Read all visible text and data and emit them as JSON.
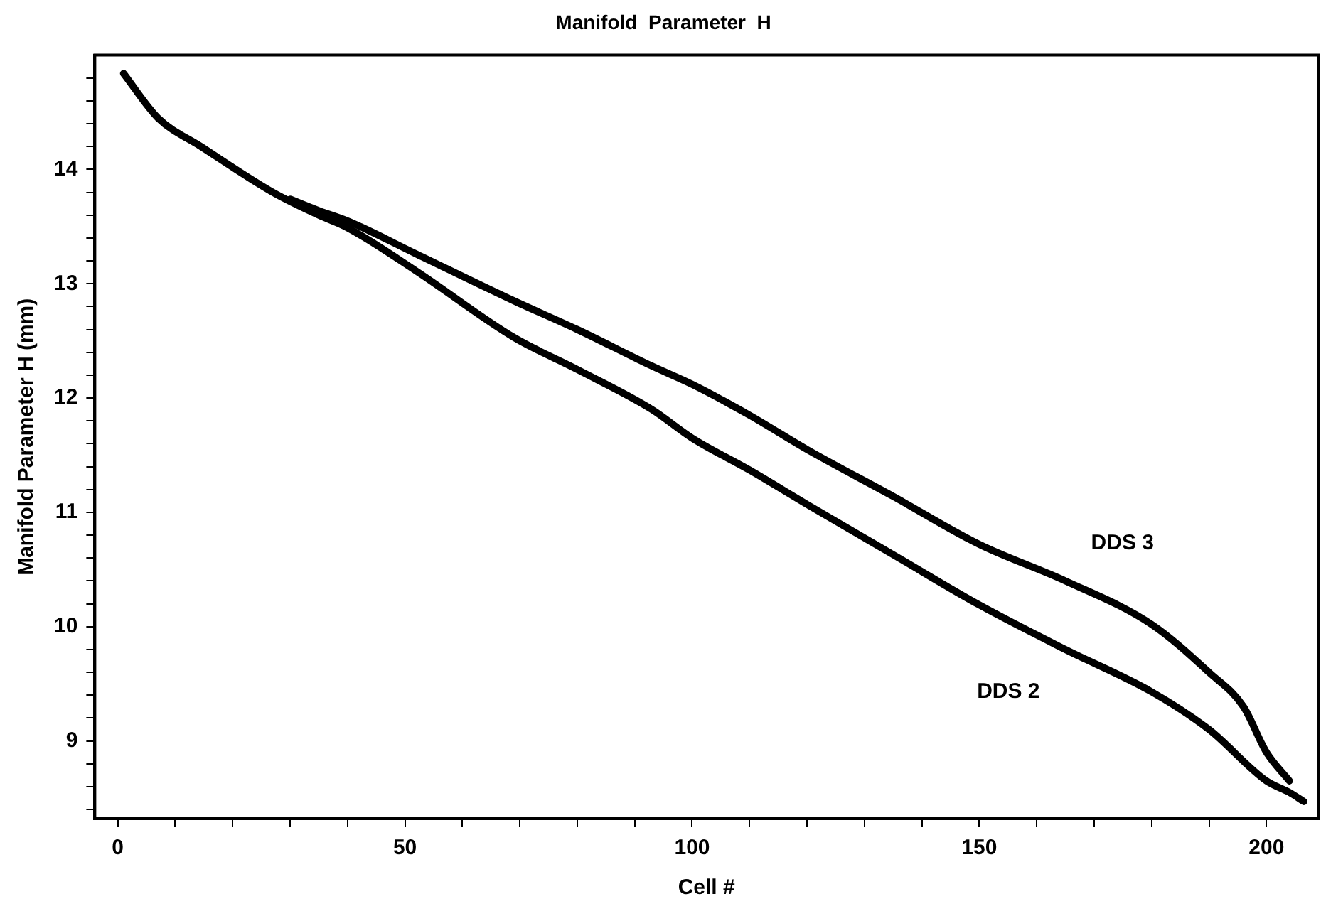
{
  "chart_data": {
    "type": "line",
    "title": "Manifold  Parameter  H",
    "xlabel": "Cell #",
    "ylabel": "Manifold Parameter H (mm)",
    "xlim": [
      -4,
      209
    ],
    "ylim": [
      8.32,
      15
    ],
    "xticks": [
      0,
      {
        "value": 10,
        "label": null
      },
      {
        "value": 20,
        "label": null
      },
      {
        "value": 30,
        "label": null
      },
      {
        "value": 40,
        "label": null
      },
      50,
      {
        "value": 60,
        "label": null
      },
      {
        "value": 70,
        "label": null
      },
      {
        "value": 80,
        "label": null
      },
      {
        "value": 90,
        "label": null
      },
      100,
      {
        "value": 110,
        "label": null
      },
      {
        "value": 120,
        "label": null
      },
      {
        "value": 130,
        "label": null
      },
      {
        "value": 140,
        "label": null
      },
      150,
      {
        "value": 160,
        "label": null
      },
      {
        "value": 170,
        "label": null
      },
      {
        "value": 180,
        "label": null
      },
      {
        "value": 190,
        "label": null
      },
      200
    ],
    "yticks": [
      {
        "value": 8.4,
        "label": null
      },
      {
        "value": 8.6,
        "label": null
      },
      {
        "value": 8.8,
        "label": null
      },
      9,
      {
        "value": 9.2,
        "label": null
      },
      {
        "value": 9.4,
        "label": null
      },
      {
        "value": 9.6,
        "label": null
      },
      {
        "value": 9.8,
        "label": null
      },
      10,
      {
        "value": 10.2,
        "label": null
      },
      {
        "value": 10.4,
        "label": null
      },
      {
        "value": 10.6,
        "label": null
      },
      {
        "value": 10.8,
        "label": null
      },
      11,
      {
        "value": 11.2,
        "label": null
      },
      {
        "value": 11.4,
        "label": null
      },
      {
        "value": 11.6,
        "label": null
      },
      {
        "value": 11.8,
        "label": null
      },
      12,
      {
        "value": 12.2,
        "label": null
      },
      {
        "value": 12.4,
        "label": null
      },
      {
        "value": 12.6,
        "label": null
      },
      {
        "value": 12.8,
        "label": null
      },
      13,
      {
        "value": 13.2,
        "label": null
      },
      {
        "value": 13.4,
        "label": null
      },
      {
        "value": 13.6,
        "label": null
      },
      {
        "value": 13.8,
        "label": null
      },
      14,
      {
        "value": 14.2,
        "label": null
      },
      {
        "value": 14.4,
        "label": null
      },
      {
        "value": 14.6,
        "label": null
      },
      {
        "value": 14.8,
        "label": null
      }
    ],
    "grid": false,
    "marker": "none",
    "line_style": "solid",
    "legend": false,
    "series": [
      {
        "name": "DDS 3",
        "color": "#000000",
        "x": [
          30,
          35,
          40,
          52,
          69,
          80,
          93,
          100,
          110,
          120,
          135,
          150,
          165,
          180,
          190,
          196,
          200,
          204
        ],
        "values": [
          13.74,
          13.64,
          13.55,
          13.26,
          12.85,
          12.6,
          12.28,
          12.12,
          11.85,
          11.55,
          11.14,
          10.72,
          10.4,
          10.02,
          9.6,
          9.3,
          8.9,
          8.65
        ]
      },
      {
        "name": "DDS 2",
        "color": "#000000",
        "x": [
          1,
          7,
          14.5,
          27,
          35,
          40,
          52,
          69,
          80,
          93,
          100,
          110,
          120,
          135,
          150,
          165,
          180,
          190,
          200,
          204,
          206.5
        ],
        "values": [
          14.84,
          14.45,
          14.2,
          13.8,
          13.6,
          13.49,
          13.11,
          12.53,
          12.25,
          11.9,
          11.65,
          11.37,
          11.07,
          10.63,
          10.19,
          9.8,
          9.43,
          9.1,
          8.65,
          8.55,
          8.47
        ]
      }
    ]
  }
}
